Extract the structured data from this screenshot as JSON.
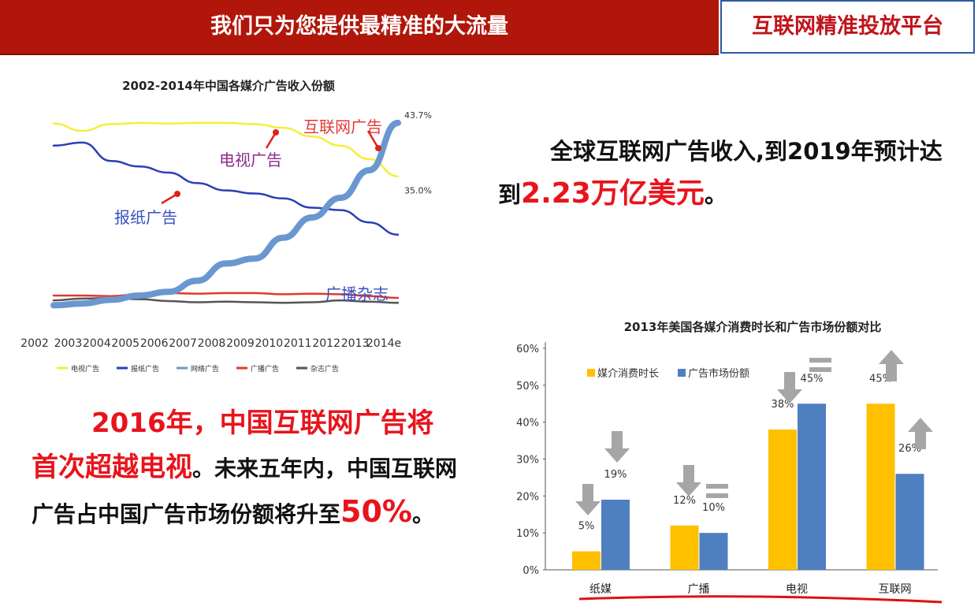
{
  "header": {
    "title": "我们只为您提供最精准的大流量",
    "badge": "互联网精准投放平台"
  },
  "statement": {
    "line_prefix": "全球互联网广告收入,到2019年预计达到",
    "highlight": "2.23万亿美元",
    "suffix": "。"
  },
  "forecast": {
    "highlight": "2016年，中国互联网广告将首次超越电视",
    "normal": "。未来五年内，中国互联网广告占中国广告市场份额将升至",
    "percent": "50%",
    "end": "。"
  },
  "colors": {
    "header_red": "#b0160a",
    "accent_red": "#e8141c",
    "tv_yellow": "#f5ee3a",
    "newspaper_blue": "#2b3fb5",
    "internet_blue": "#6a97cf",
    "radio_red": "#e03a2a",
    "magazine_gray": "#555555",
    "bar_orange": "#ffc000",
    "bar_blue": "#4f7fc0"
  },
  "chart_data": [
    {
      "type": "line",
      "title": "2002-2014年中国各媒介广告收入份额",
      "x": [
        "2002",
        "2003",
        "2004",
        "2005",
        "2006",
        "2007",
        "2008",
        "2009",
        "2010",
        "2011",
        "2012",
        "2013",
        "2014e"
      ],
      "series": [
        {
          "name": "电视广告",
          "color": "#f5ee3a",
          "values": [
            43.6,
            42.4,
            43.5,
            43.7,
            43.6,
            43.7,
            43.7,
            43.5,
            42.9,
            41.5,
            40.0,
            37.8,
            35.0
          ]
        },
        {
          "name": "报纸广告",
          "color": "#2b3fb5",
          "values": [
            40.0,
            40.5,
            37.5,
            36.6,
            35.6,
            33.9,
            32.7,
            32.2,
            31.4,
            29.9,
            29.5,
            27.5,
            25.5
          ]
        },
        {
          "name": "网络广告",
          "color": "#6a97cf",
          "values": [
            14.0,
            14.3,
            14.9,
            15.6,
            16.2,
            18.0,
            20.8,
            21.6,
            25.0,
            28.3,
            31.5,
            36.0,
            43.7
          ]
        },
        {
          "name": "广播广告",
          "color": "#e03a2a",
          "values": [
            15.6,
            15.6,
            15.5,
            15.8,
            16.0,
            15.9,
            16.0,
            16.0,
            15.8,
            15.9,
            15.8,
            15.5,
            15.2
          ]
        },
        {
          "name": "杂志广告",
          "color": "#555555",
          "values": [
            14.8,
            15.1,
            15.2,
            15.0,
            14.7,
            14.5,
            14.6,
            14.5,
            14.4,
            14.5,
            14.8,
            14.6,
            14.4
          ]
        }
      ],
      "end_labels": [
        "43.7%",
        "35.0%"
      ],
      "annotations": [
        "互联网广告",
        "电视广告",
        "报纸广告",
        "广播杂志"
      ]
    },
    {
      "type": "bar",
      "title": "2013年美国各媒介消费时长和广告市场份额对比",
      "categories": [
        "纸媒",
        "广播",
        "电视",
        "互联网"
      ],
      "series": [
        {
          "name": "媒介消费时长",
          "color": "#ffc000",
          "values": [
            5,
            12,
            38,
            45
          ]
        },
        {
          "name": "广告市场份额",
          "color": "#4f7fc0",
          "values": [
            19,
            10,
            45,
            26
          ]
        }
      ],
      "data_labels": [
        [
          "5%",
          "12%",
          "38%",
          "45%"
        ],
        [
          "19%",
          "10%",
          "45%",
          "26%"
        ]
      ],
      "y_ticks": [
        "0%",
        "10%",
        "20%",
        "30%",
        "40%",
        "50%",
        "60%"
      ],
      "ylim": [
        0,
        60
      ]
    }
  ]
}
